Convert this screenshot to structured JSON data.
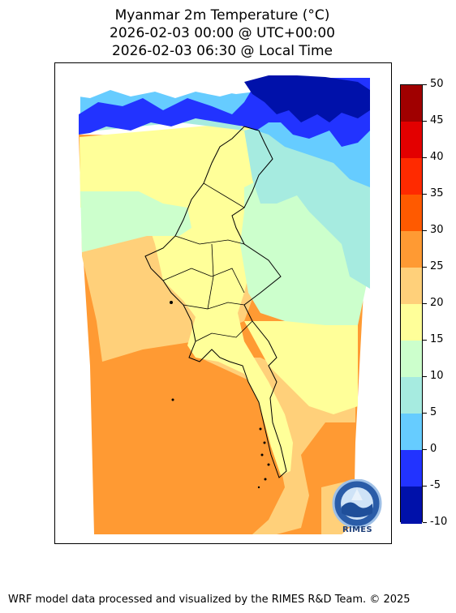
{
  "header": {
    "title": "Myanmar 2m Temperature (°C)",
    "utc_time": "2026-02-03 00:00 @ UTC+00:00",
    "local_time": "2026-02-03 06:30 @ Local Time"
  },
  "map": {
    "region": "Myanmar",
    "variable": "2m Temperature",
    "unit": "°C",
    "bands_shown": [
      "-10 to -5",
      "-5 to 0",
      "0 to 5",
      "5 to 10",
      "10 to 15",
      "15 to 20",
      "20 to 25",
      "25 to 30"
    ]
  },
  "colorbar": {
    "ticks": [
      "50",
      "45",
      "40",
      "35",
      "30",
      "25",
      "20",
      "15",
      "10",
      "5",
      "0",
      "-5",
      "-10"
    ],
    "colors": [
      "#a00000",
      "#e30000",
      "#ff2a00",
      "#ff5a00",
      "#ff9a33",
      "#ffd07a",
      "#ffff99",
      "#ccffcc",
      "#a6ebe0",
      "#66ccff",
      "#2233ff",
      "#0011aa"
    ]
  },
  "logo": {
    "name": "RIMES",
    "ring_text": "Regional Integrated Multi-Hazard Early Warning System"
  },
  "footer": {
    "credit": "WRF model data processed and visualized by the RIMES R&D Team. © 2025"
  }
}
